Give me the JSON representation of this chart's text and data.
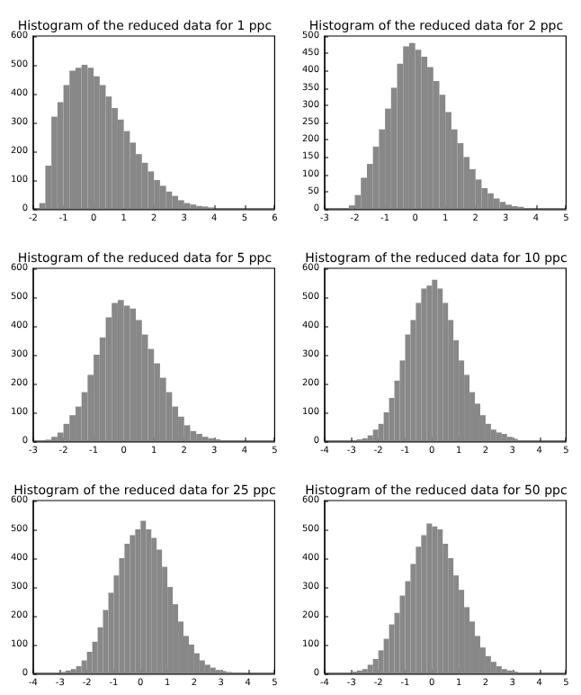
{
  "chart_data": [
    {
      "type": "histogram",
      "title": "Histogram of the reduced data for 1 ppc",
      "color": "#888888",
      "grid": false,
      "bins": [
        -2,
        -1.8,
        -1.6,
        -1.4,
        -1.2,
        -1,
        -0.8,
        -0.6,
        -0.4,
        -0.2,
        0,
        0.2,
        0.4,
        0.6,
        0.8,
        1,
        1.2,
        1.4,
        1.6,
        1.8,
        2,
        2.2,
        2.4,
        2.6,
        2.8,
        3,
        3.2,
        3.4,
        3.6,
        3.8,
        4,
        4.2,
        4.4,
        4.6,
        4.8,
        5,
        5.2,
        5.4,
        5.6,
        5.8,
        6
      ],
      "values": [
        0,
        20,
        150,
        320,
        370,
        430,
        480,
        490,
        500,
        490,
        460,
        430,
        390,
        350,
        310,
        270,
        230,
        190,
        160,
        130,
        100,
        80,
        60,
        45,
        30,
        20,
        15,
        10,
        8,
        5,
        0,
        0,
        0,
        0,
        0,
        0,
        0,
        0,
        0,
        0
      ],
      "xlim": [
        -2,
        6
      ],
      "xticks": [
        -2,
        -1,
        0,
        1,
        2,
        3,
        4,
        5,
        6
      ],
      "ylim": [
        0,
        600
      ],
      "yticks": [
        0,
        100,
        200,
        300,
        400,
        500,
        600
      ]
    },
    {
      "type": "histogram",
      "title": "Histogram of the reduced data for 2 ppc",
      "color": "#888888",
      "grid": false,
      "bins": [
        -3,
        -2.8,
        -2.6,
        -2.4,
        -2.2,
        -2,
        -1.8,
        -1.6,
        -1.4,
        -1.2,
        -1,
        -0.8,
        -0.6,
        -0.4,
        -0.2,
        0,
        0.2,
        0.4,
        0.6,
        0.8,
        1,
        1.2,
        1.4,
        1.6,
        1.8,
        2,
        2.2,
        2.4,
        2.6,
        2.8,
        3,
        3.2,
        3.4,
        3.6,
        3.8,
        4,
        4.2,
        4.4,
        4.6,
        4.8,
        5
      ],
      "values": [
        0,
        0,
        0,
        0,
        10,
        40,
        90,
        130,
        180,
        230,
        290,
        350,
        420,
        470,
        480,
        460,
        440,
        410,
        370,
        330,
        280,
        230,
        190,
        150,
        115,
        85,
        60,
        45,
        30,
        20,
        12,
        8,
        6,
        0,
        0,
        0,
        0,
        0,
        0,
        0
      ],
      "xlim": [
        -3,
        5
      ],
      "xticks": [
        -3,
        -2,
        -1,
        0,
        1,
        2,
        3,
        4,
        5
      ],
      "ylim": [
        0,
        500
      ],
      "yticks": [
        0,
        50,
        100,
        150,
        200,
        250,
        300,
        350,
        400,
        450,
        500
      ]
    },
    {
      "type": "histogram",
      "title": "Histogram of the reduced data for 5 ppc",
      "color": "#888888",
      "grid": false,
      "bins": [
        -3,
        -2.8,
        -2.6,
        -2.4,
        -2.2,
        -2,
        -1.8,
        -1.6,
        -1.4,
        -1.2,
        -1,
        -0.8,
        -0.6,
        -0.4,
        -0.2,
        0,
        0.2,
        0.4,
        0.6,
        0.8,
        1,
        1.2,
        1.4,
        1.6,
        1.8,
        2,
        2.2,
        2.4,
        2.6,
        2.8,
        3,
        3.2,
        3.4,
        3.6,
        3.8,
        4,
        4.2,
        4.4,
        4.6,
        4.8,
        5
      ],
      "values": [
        0,
        0,
        5,
        15,
        30,
        60,
        90,
        120,
        170,
        230,
        300,
        360,
        430,
        480,
        490,
        470,
        460,
        420,
        370,
        320,
        270,
        220,
        170,
        120,
        85,
        55,
        35,
        25,
        15,
        10,
        6,
        0,
        0,
        0,
        0,
        0,
        0,
        0,
        0,
        0
      ],
      "xlim": [
        -3,
        5
      ],
      "xticks": [
        -3,
        -2,
        -1,
        0,
        1,
        2,
        3,
        4,
        5
      ],
      "ylim": [
        0,
        600
      ],
      "yticks": [
        0,
        100,
        200,
        300,
        400,
        500,
        600
      ]
    },
    {
      "type": "histogram",
      "title": "Histogram of the reduced data for 10 ppc",
      "color": "#888888",
      "grid": false,
      "bins": [
        -4,
        -3.8,
        -3.6,
        -3.4,
        -3.2,
        -3,
        -2.8,
        -2.6,
        -2.4,
        -2.2,
        -2,
        -1.8,
        -1.6,
        -1.4,
        -1.2,
        -1,
        -0.8,
        -0.6,
        -0.4,
        -0.2,
        0,
        0.2,
        0.4,
        0.6,
        0.8,
        1,
        1.2,
        1.4,
        1.6,
        1.8,
        2,
        2.2,
        2.4,
        2.6,
        2.8,
        3,
        3.2,
        3.4,
        3.6,
        3.8,
        4,
        4.2,
        4.4,
        4.6,
        4.8,
        5
      ],
      "values": [
        0,
        0,
        0,
        0,
        0,
        0,
        6,
        10,
        20,
        40,
        60,
        100,
        150,
        210,
        280,
        370,
        420,
        480,
        530,
        540,
        560,
        530,
        480,
        420,
        350,
        280,
        230,
        170,
        130,
        90,
        60,
        40,
        30,
        25,
        15,
        8,
        0,
        0,
        0,
        0,
        0,
        0,
        0,
        0,
        0
      ],
      "xlim": [
        -4,
        5
      ],
      "xticks": [
        -4,
        -3,
        -2,
        -1,
        0,
        1,
        2,
        3,
        4,
        5
      ],
      "ylim": [
        0,
        600
      ],
      "yticks": [
        0,
        100,
        200,
        300,
        400,
        500,
        600
      ]
    },
    {
      "type": "histogram",
      "title": "Histogram of the reduced data for 25 ppc",
      "color": "#888888",
      "grid": false,
      "bins": [
        -4,
        -3.8,
        -3.6,
        -3.4,
        -3.2,
        -3,
        -2.8,
        -2.6,
        -2.4,
        -2.2,
        -2,
        -1.8,
        -1.6,
        -1.4,
        -1.2,
        -1,
        -0.8,
        -0.6,
        -0.4,
        -0.2,
        0,
        0.2,
        0.4,
        0.6,
        0.8,
        1,
        1.2,
        1.4,
        1.6,
        1.8,
        2,
        2.2,
        2.4,
        2.6,
        2.8,
        3,
        3.2,
        3.4,
        3.6,
        3.8,
        4,
        4.2,
        4.4,
        4.6,
        4.8,
        5
      ],
      "values": [
        0,
        0,
        0,
        0,
        0,
        5,
        10,
        15,
        25,
        45,
        75,
        110,
        160,
        220,
        280,
        340,
        400,
        450,
        480,
        500,
        530,
        500,
        470,
        430,
        370,
        300,
        240,
        180,
        130,
        100,
        70,
        45,
        30,
        20,
        12,
        8,
        5,
        0,
        0,
        0,
        0,
        0,
        0,
        0,
        0
      ],
      "xlim": [
        -4,
        5
      ],
      "xticks": [
        -4,
        -3,
        -2,
        -1,
        0,
        1,
        2,
        3,
        4,
        5
      ],
      "ylim": [
        0,
        600
      ],
      "yticks": [
        0,
        100,
        200,
        300,
        400,
        500,
        600
      ]
    },
    {
      "type": "histogram",
      "title": "Histogram of the reduced data for 50 ppc",
      "color": "#888888",
      "grid": false,
      "bins": [
        -4,
        -3.8,
        -3.6,
        -3.4,
        -3.2,
        -3,
        -2.8,
        -2.6,
        -2.4,
        -2.2,
        -2,
        -1.8,
        -1.6,
        -1.4,
        -1.2,
        -1,
        -0.8,
        -0.6,
        -0.4,
        -0.2,
        0,
        0.2,
        0.4,
        0.6,
        0.8,
        1,
        1.2,
        1.4,
        1.6,
        1.8,
        2,
        2.2,
        2.4,
        2.6,
        2.8,
        3,
        3.2,
        3.4,
        3.6,
        3.8,
        4,
        4.2,
        4.4,
        4.6,
        4.8,
        5
      ],
      "values": [
        0,
        0,
        0,
        0,
        0,
        6,
        10,
        15,
        30,
        50,
        80,
        120,
        170,
        210,
        270,
        320,
        380,
        440,
        480,
        520,
        510,
        500,
        450,
        400,
        340,
        290,
        230,
        180,
        130,
        90,
        60,
        40,
        25,
        15,
        10,
        6,
        0,
        0,
        0,
        0,
        0,
        0,
        0,
        0,
        0
      ],
      "xlim": [
        -4,
        5
      ],
      "xticks": [
        -4,
        -3,
        -2,
        -1,
        0,
        1,
        2,
        3,
        4,
        5
      ],
      "ylim": [
        0,
        600
      ],
      "yticks": [
        0,
        100,
        200,
        300,
        400,
        500,
        600
      ]
    }
  ]
}
